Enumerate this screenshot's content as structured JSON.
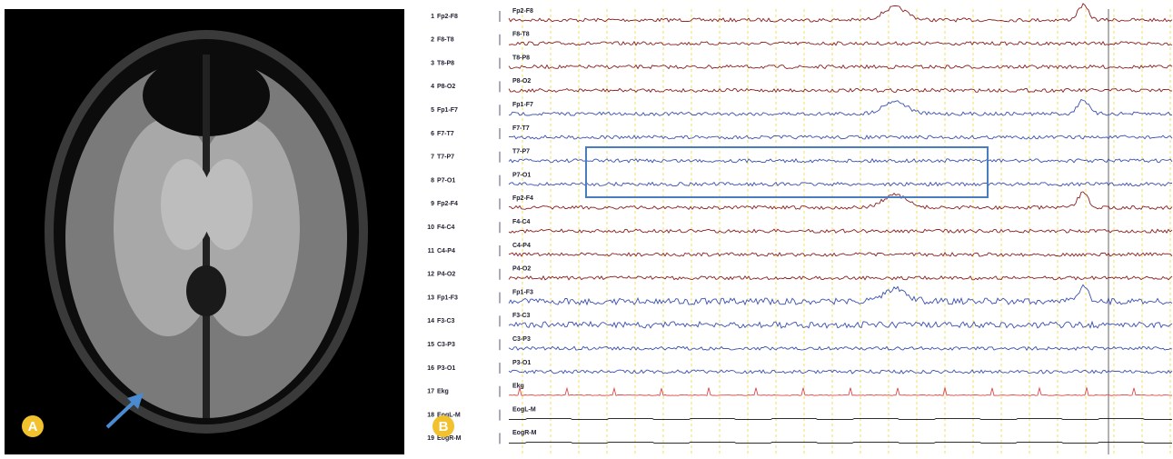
{
  "panels": {
    "a": {
      "label": "A"
    },
    "b": {
      "label": "B"
    }
  },
  "eeg": {
    "channels": [
      {
        "number": "1",
        "name": "Fp2-F8",
        "trace_label": "Fp2-F8",
        "color": "#8b1e1e"
      },
      {
        "number": "2",
        "name": "F8-T8",
        "trace_label": "F8-T8",
        "color": "#8b1e1e"
      },
      {
        "number": "3",
        "name": "T8-P8",
        "trace_label": "T8-P8",
        "color": "#8b1e1e"
      },
      {
        "number": "4",
        "name": "P8-O2",
        "trace_label": "P8-O2",
        "color": "#8b1e1e"
      },
      {
        "number": "5",
        "name": "Fp1-F7",
        "trace_label": "Fp1-F7",
        "color": "#3a4fb0"
      },
      {
        "number": "6",
        "name": "F7-T7",
        "trace_label": "F7-T7",
        "color": "#3a4fb0"
      },
      {
        "number": "7",
        "name": "T7-P7",
        "trace_label": "T7-P7",
        "color": "#3a4fb0"
      },
      {
        "number": "8",
        "name": "P7-O1",
        "trace_label": "P7-O1",
        "color": "#3a4fb0"
      },
      {
        "number": "9",
        "name": "Fp2-F4",
        "trace_label": "Fp2-F4",
        "color": "#8b1e1e"
      },
      {
        "number": "10",
        "name": "F4-C4",
        "trace_label": "F4-C4",
        "color": "#8b1e1e"
      },
      {
        "number": "11",
        "name": "C4-P4",
        "trace_label": "C4-P4",
        "color": "#8b1e1e"
      },
      {
        "number": "12",
        "name": "P4-O2",
        "trace_label": "P4-O2",
        "color": "#8b1e1e"
      },
      {
        "number": "13",
        "name": "Fp1-F3",
        "trace_label": "Fp1-F3",
        "color": "#3a4fb0"
      },
      {
        "number": "14",
        "name": "F3-C3",
        "trace_label": "F3-C3",
        "color": "#3a4fb0"
      },
      {
        "number": "15",
        "name": "C3-P3",
        "trace_label": "C3-P3",
        "color": "#3a4fb0"
      },
      {
        "number": "16",
        "name": "P3-O1",
        "trace_label": "P3-O1",
        "color": "#3a4fb0"
      },
      {
        "number": "17",
        "name": "Ekg",
        "trace_label": "Ekg",
        "color": "#e04848"
      },
      {
        "number": "18",
        "name": "EogL-M",
        "trace_label": "EogL-M",
        "color": "#111111"
      },
      {
        "number": "19",
        "name": "EogR-M",
        "trace_label": "EogR-M",
        "color": "#111111"
      }
    ]
  }
}
